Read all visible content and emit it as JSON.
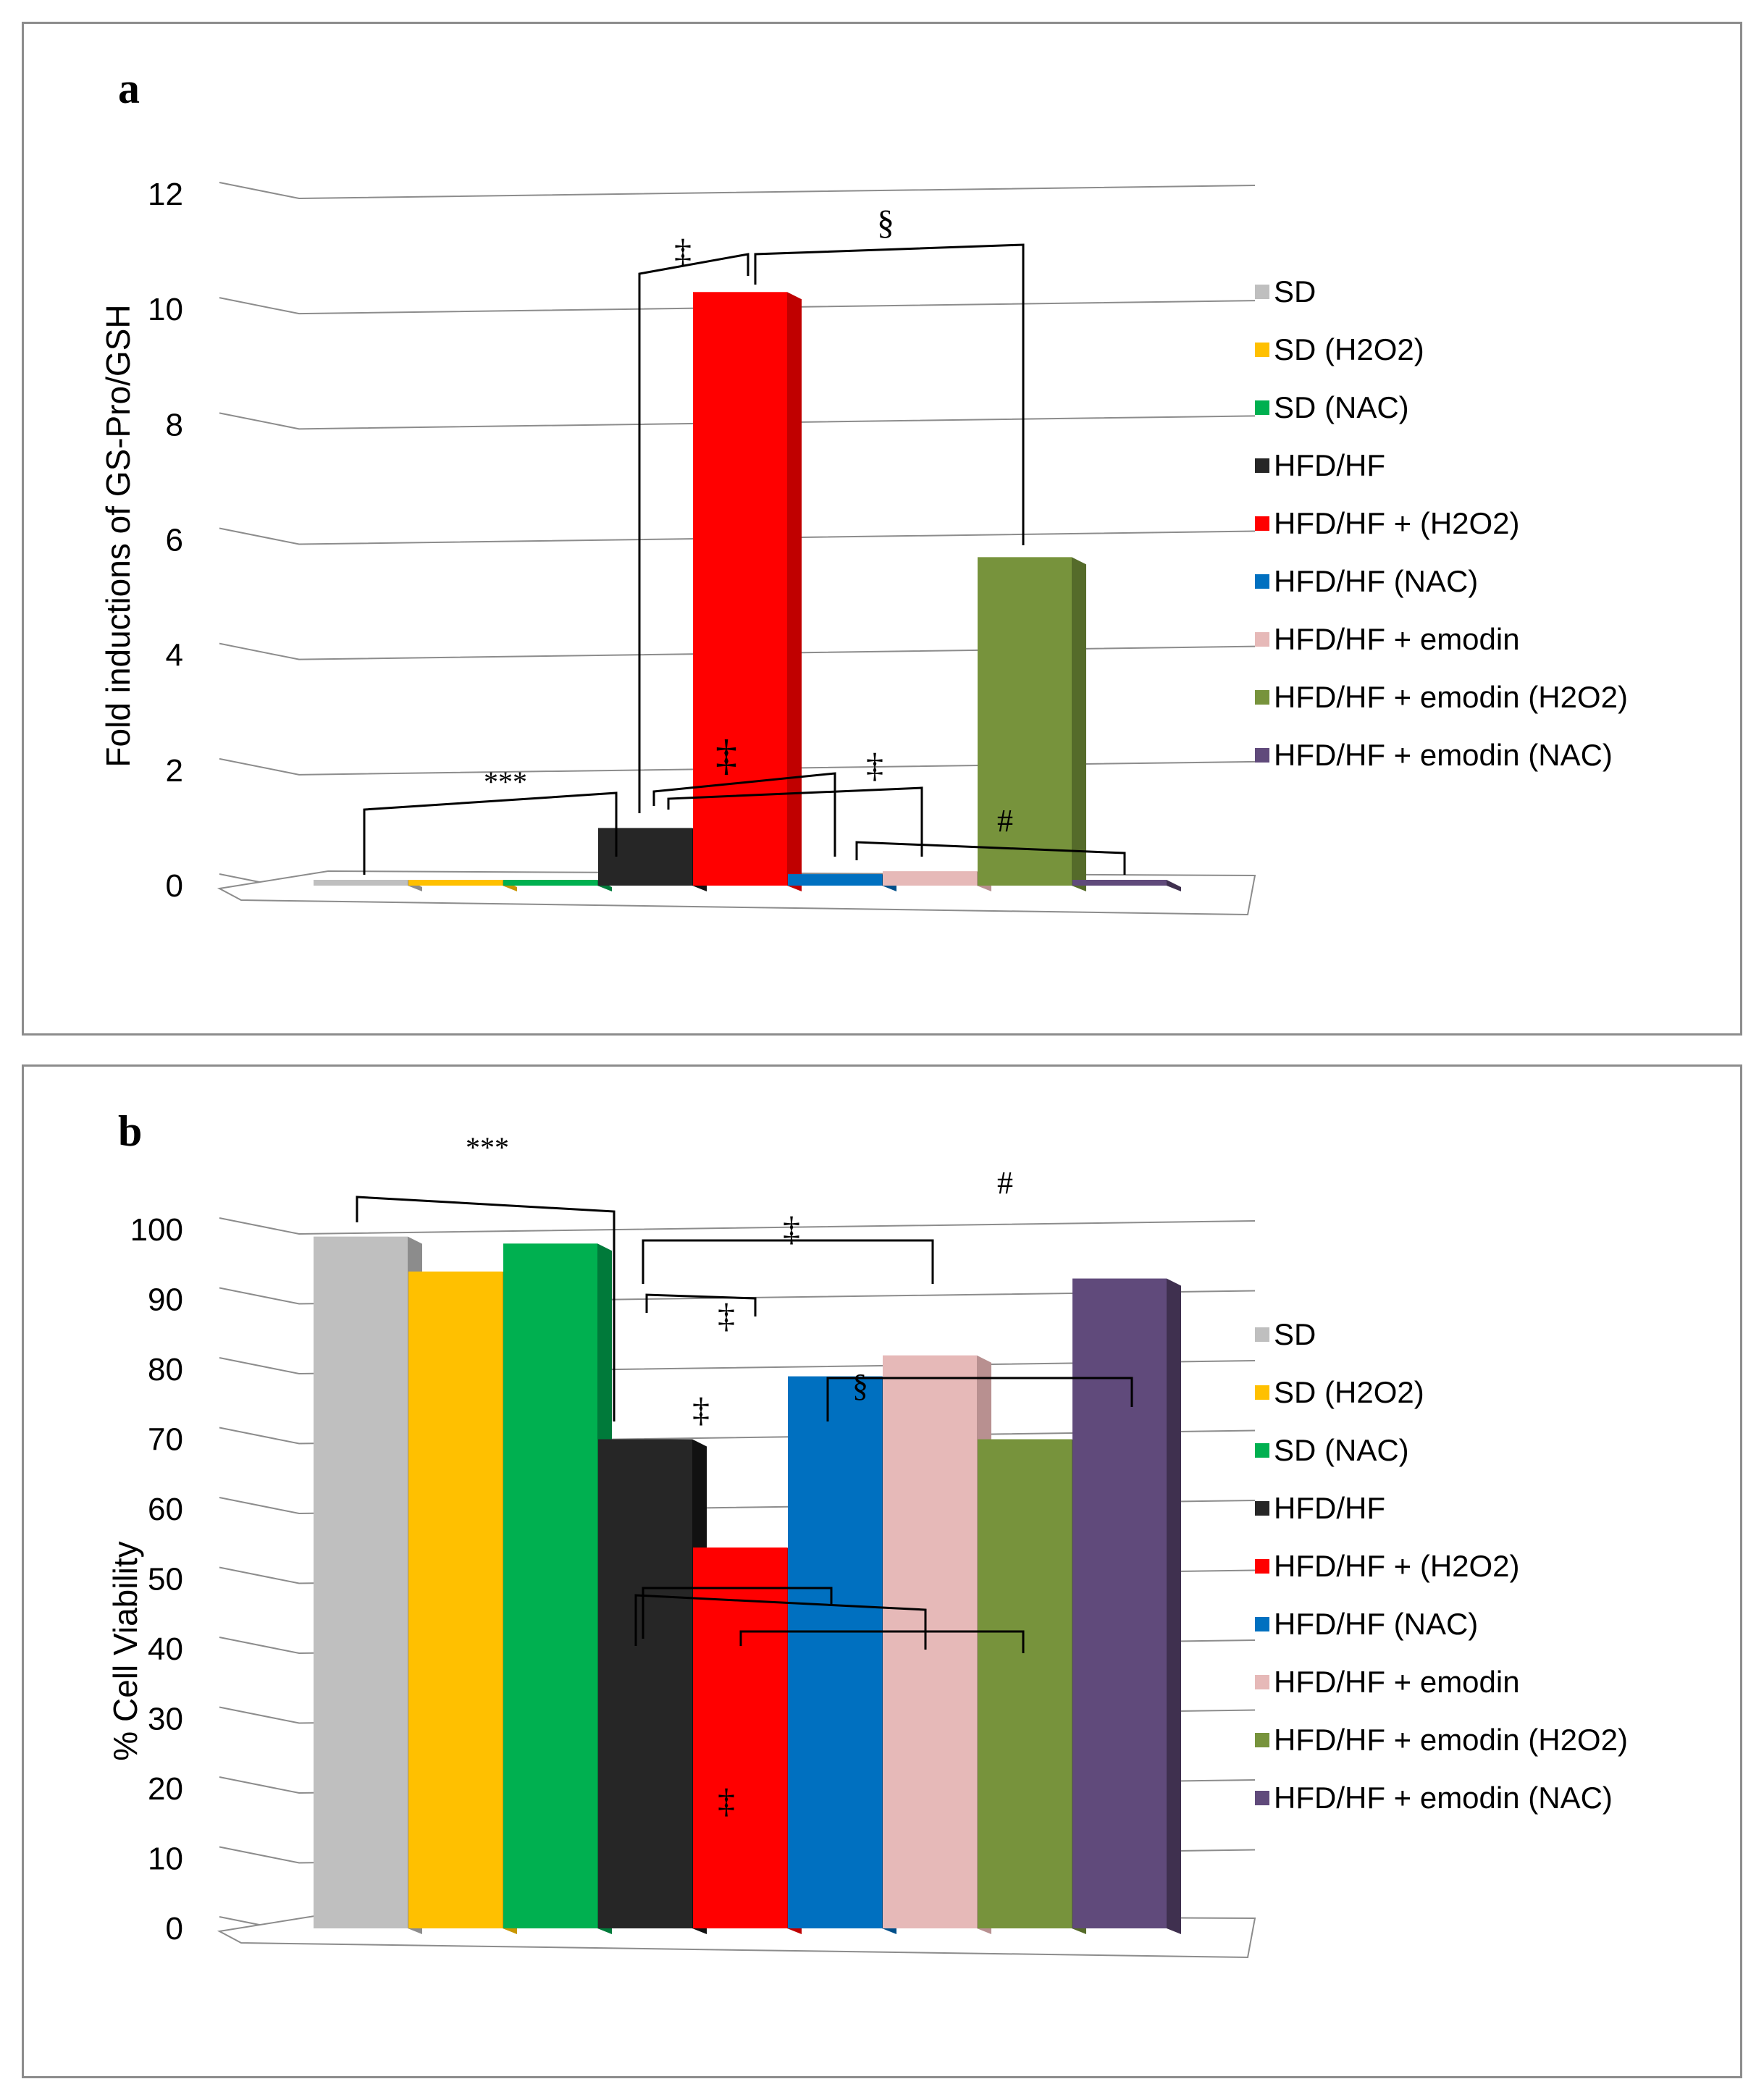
{
  "figure": {
    "panel_a_label": "a",
    "panel_b_label": "b"
  },
  "legend_labels": [
    "SD",
    "SD (H2O2)",
    "SD (NAC)",
    "HFD/HF",
    "HFD/HF + (H2O2)",
    "HFD/HF (NAC)",
    "HFD/HF + emodin",
    "HFD/HF + emodin (H2O2)",
    "HFD/HF + emodin (NAC)"
  ],
  "colors": [
    "#bfbfbf",
    "#ffc000",
    "#00b050",
    "#262626",
    "#ff0000",
    "#0070c0",
    "#e6b9b8",
    "#77933c",
    "#604a7b"
  ],
  "side_colors": [
    "#8c8c8c",
    "#c89600",
    "#007a3a",
    "#111111",
    "#c00000",
    "#004f8a",
    "#b89090",
    "#556b2a",
    "#3f304f"
  ],
  "chart_data": [
    {
      "type": "bar",
      "title": "",
      "xlabel": "",
      "ylabel": "Fold inductions of GS-Pro/GSH",
      "categories": [
        "SD",
        "SD (H2O2)",
        "SD (NAC)",
        "HFD/HF",
        "HFD/HF + (H2O2)",
        "HFD/HF (NAC)",
        "HFD/HF + emodin",
        "HFD/HF + emodin (H2O2)",
        "HFD/HF + emodin (NAC)"
      ],
      "values": [
        0.1,
        0.1,
        0.1,
        1.0,
        10.3,
        0.2,
        0.25,
        5.7,
        0.1
      ],
      "ylim": [
        0,
        12
      ],
      "yticks": [
        0,
        2,
        4,
        6,
        8,
        10,
        12
      ],
      "grid": true,
      "legend": "right",
      "annotations": [
        "***",
        "‡",
        "§",
        "‡",
        "‡",
        "#"
      ]
    },
    {
      "type": "bar",
      "title": "",
      "xlabel": "",
      "ylabel": "% Cell Viability",
      "categories": [
        "SD",
        "SD (H2O2)",
        "SD (NAC)",
        "HFD/HF",
        "HFD/HF + (H2O2)",
        "HFD/HF (NAC)",
        "HFD/HF + emodin",
        "HFD/HF + emodin (H2O2)",
        "HFD/HF + emodin (NAC)"
      ],
      "values": [
        99,
        94,
        98,
        70,
        54.5,
        79,
        82,
        70,
        93
      ],
      "ylim": [
        0,
        100
      ],
      "yticks": [
        0,
        10,
        20,
        30,
        40,
        50,
        60,
        70,
        80,
        90,
        100
      ],
      "grid": true,
      "legend": "right",
      "annotations": [
        "***",
        "#",
        "‡",
        "‡",
        "‡",
        "§",
        "‡"
      ]
    }
  ]
}
